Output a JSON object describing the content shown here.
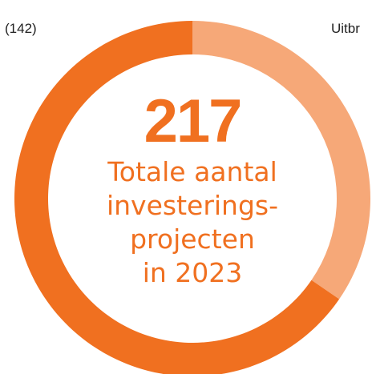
{
  "chart_data": {
    "type": "pie",
    "style": "donut",
    "slices": [
      {
        "label": "Uitbr",
        "value": 75,
        "color": "#f6a878"
      },
      {
        "label": "(142)",
        "value": 142,
        "color": "#f07020"
      }
    ],
    "center_value": "217",
    "center_text_lines": [
      "Totale aantal",
      "investerings-",
      "projecten",
      "in 2023"
    ]
  },
  "labels": {
    "left": "(142)",
    "right": "Uitbr"
  },
  "colors": {
    "accent": "#f07020",
    "light": "#f6a878",
    "background": "#ffffff"
  }
}
